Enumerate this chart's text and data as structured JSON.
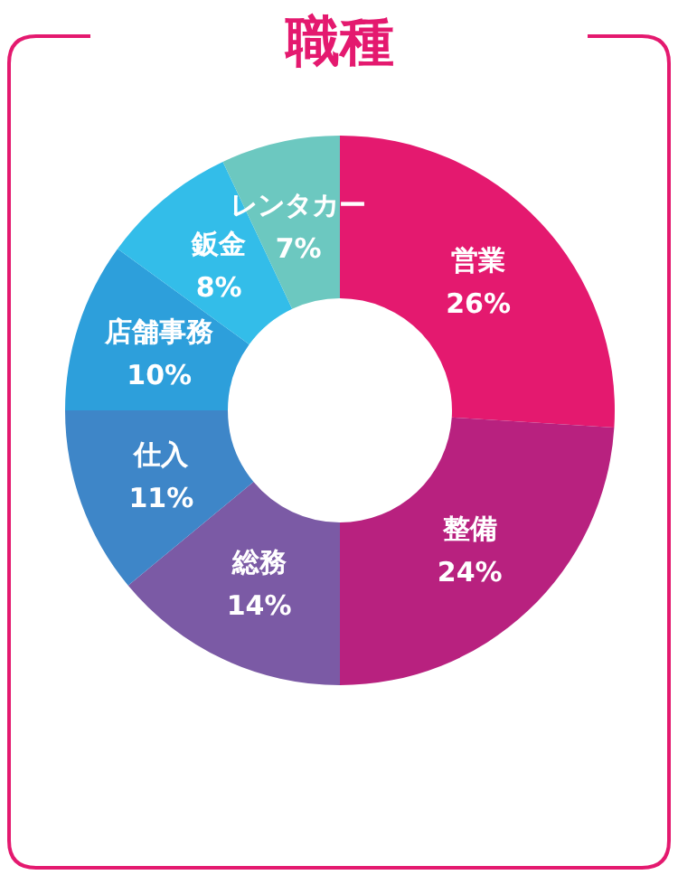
{
  "chart_data": {
    "type": "donut",
    "title": "職種",
    "categories": [
      "営業",
      "整備",
      "総務",
      "仕入",
      "店舗事務",
      "鈑金",
      "レンタカー"
    ],
    "values": [
      26,
      24,
      14,
      11,
      10,
      8,
      7
    ],
    "value_labels": [
      "26%",
      "24%",
      "14%",
      "11%",
      "10%",
      "8%",
      "7%"
    ],
    "colors": [
      "#e4196f",
      "#b8217f",
      "#7b5aa5",
      "#3e86c8",
      "#2d9fdb",
      "#33bde9",
      "#6cc8c0"
    ]
  }
}
